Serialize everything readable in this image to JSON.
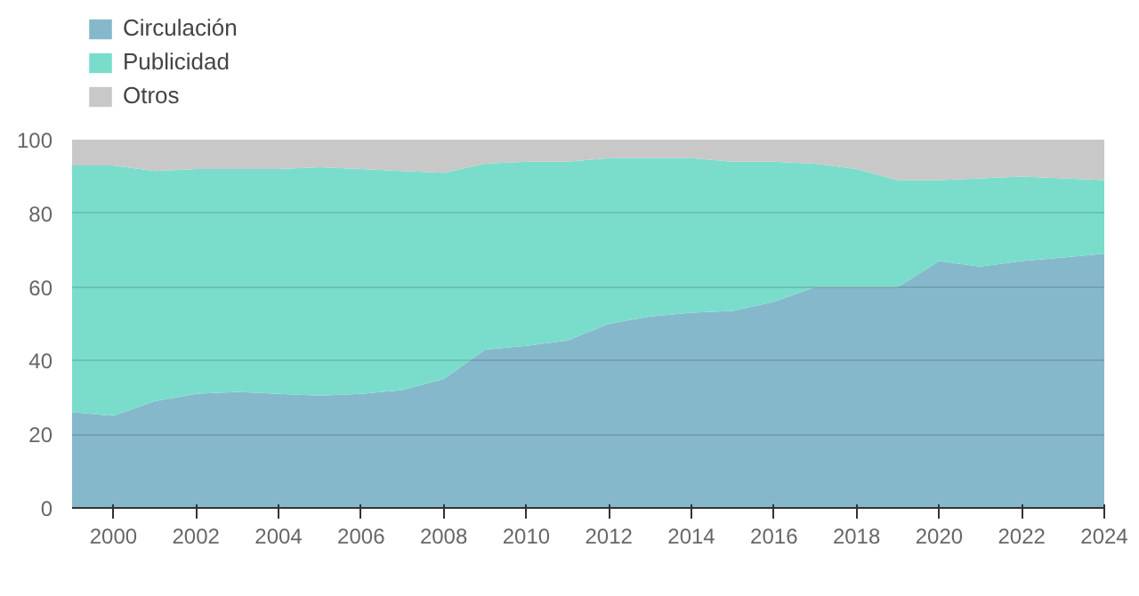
{
  "chart_data": {
    "type": "area",
    "stacked": true,
    "x": [
      1999,
      2000,
      2001,
      2002,
      2003,
      2004,
      2005,
      2006,
      2007,
      2008,
      2009,
      2010,
      2011,
      2012,
      2013,
      2014,
      2015,
      2016,
      2017,
      2018,
      2019,
      2020,
      2021,
      2022,
      2023,
      2024
    ],
    "series": [
      {
        "name": "Circulación",
        "color": "#86b8cc",
        "values": [
          26,
          25,
          29,
          31,
          31.5,
          31,
          30.5,
          31,
          32,
          35,
          43,
          44,
          45.5,
          50,
          52,
          53,
          53.5,
          56,
          60,
          60,
          60,
          67,
          65.5,
          67,
          68,
          69
        ]
      },
      {
        "name": "Publicidad",
        "color": "#7addcc",
        "values": [
          67,
          68,
          62.5,
          61,
          60.5,
          61,
          62,
          61,
          59.5,
          56,
          50.5,
          50,
          48.5,
          45,
          43,
          42,
          40.5,
          38,
          33.5,
          32,
          29,
          22,
          24,
          23,
          21.5,
          20
        ]
      },
      {
        "name": "Otros",
        "color": "#c8c8c8",
        "values": [
          7,
          7,
          8.5,
          8,
          8,
          8,
          7.5,
          8,
          8.5,
          9,
          6.5,
          6,
          6,
          5,
          5,
          5,
          6,
          6,
          6.5,
          8,
          11,
          11,
          10.5,
          10,
          10.5,
          11
        ]
      }
    ],
    "xlim": [
      1999,
      2024
    ],
    "ylim": [
      0,
      100
    ],
    "xticks": [
      2000,
      2002,
      2004,
      2006,
      2008,
      2010,
      2012,
      2014,
      2016,
      2018,
      2020,
      2022,
      2024
    ],
    "yticks": [
      0,
      20,
      40,
      60,
      80,
      100
    ],
    "grid": "y",
    "legend": "top left"
  }
}
